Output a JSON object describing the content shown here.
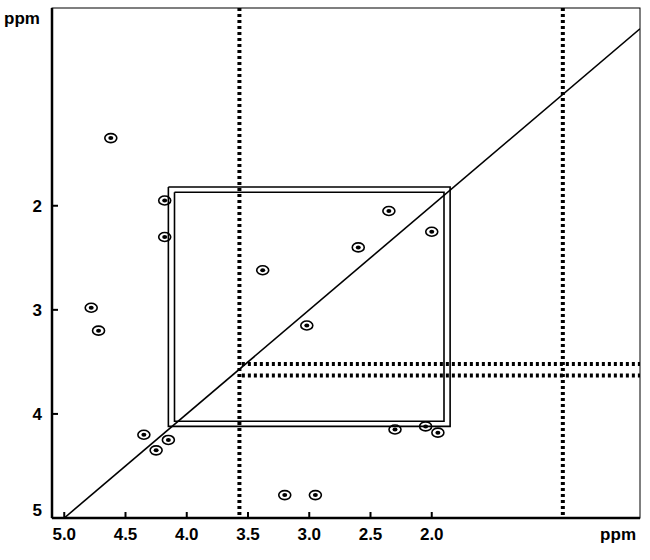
{
  "chart_data": {
    "type": "contour",
    "x_label": "ppm",
    "y_label": "ppm",
    "xlim": [
      5.1,
      0.3
    ],
    "ylim": [
      0.1,
      5.0
    ],
    "xticks": [
      {
        "value": 5,
        "label": "5.0"
      },
      {
        "value": 4.5,
        "label": "4.5"
      },
      {
        "value": 4,
        "label": "4.0"
      },
      {
        "value": 3.5,
        "label": "3.5"
      },
      {
        "value": 3,
        "label": "3.0"
      },
      {
        "value": 2.5,
        "label": "2.5"
      },
      {
        "value": 2,
        "label": "2.0"
      }
    ],
    "yticks": [
      2,
      3,
      4,
      5
    ],
    "series": [
      {
        "type": "line",
        "color": "#000000",
        "line_style": "solid",
        "x": [
          5.0,
          0.3
        ],
        "values": [
          5.0,
          0.3
        ]
      },
      {
        "type": "line",
        "color": "#000000",
        "line_style": "solid",
        "x": [
          4.15,
          1.85,
          1.85,
          4.15,
          4.15
        ],
        "values": [
          1.82,
          1.82,
          4.12,
          4.12,
          1.82
        ]
      },
      {
        "type": "line",
        "color": "#000000",
        "line_style": "solid",
        "x": [
          4.1,
          1.9,
          1.9,
          4.1,
          4.1
        ],
        "values": [
          1.87,
          1.87,
          4.07,
          4.07,
          1.87
        ]
      },
      {
        "type": "line",
        "color": "#000000",
        "line_style": "dashed",
        "x": [
          3.57,
          3.57
        ],
        "values": [
          0.1,
          5.0
        ]
      },
      {
        "type": "line",
        "color": "#000000",
        "line_style": "dashed",
        "x": [
          0.93,
          0.93
        ],
        "values": [
          0.1,
          5.0
        ]
      },
      {
        "type": "line",
        "color": "#000000",
        "line_style": "dashed",
        "x": [
          3.55,
          0.3
        ],
        "values": [
          3.52,
          3.52
        ]
      },
      {
        "type": "line",
        "color": "#000000",
        "line_style": "dashed",
        "x": [
          3.55,
          0.3
        ],
        "values": [
          3.63,
          3.63
        ]
      },
      {
        "type": "scatter",
        "color": "#000000",
        "marker": "circle",
        "x": [
          4.62,
          4.78,
          4.72,
          3.2,
          2.95,
          4.18,
          4.18,
          2.3,
          1.95,
          2.05,
          3.38,
          3.02,
          2.6,
          2.35,
          2.0,
          4.35,
          4.25,
          4.15
        ],
        "values": [
          1.35,
          2.98,
          3.2,
          4.78,
          4.78,
          1.95,
          2.3,
          4.15,
          4.18,
          4.12,
          2.62,
          3.15,
          2.4,
          2.05,
          2.25,
          4.2,
          4.35,
          4.25
        ]
      }
    ]
  }
}
